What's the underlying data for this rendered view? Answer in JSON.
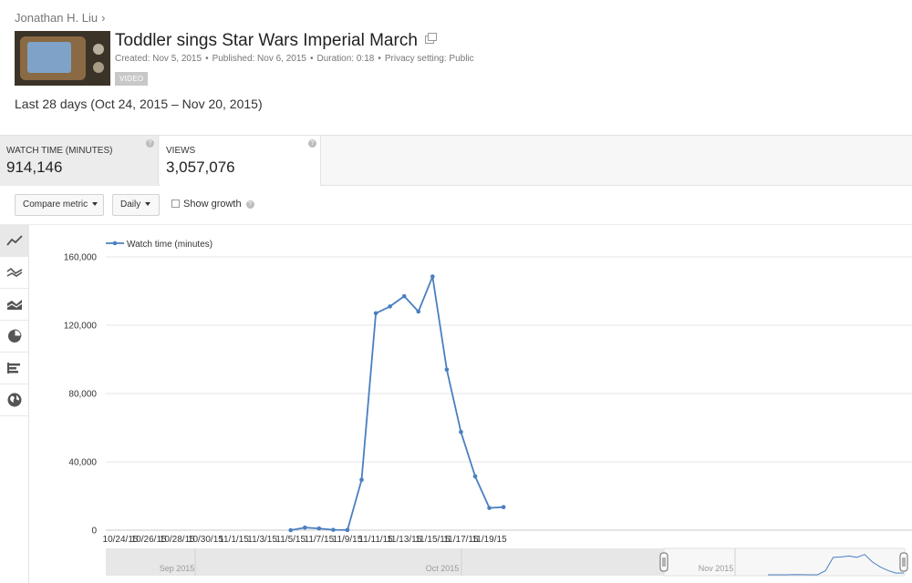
{
  "breadcrumb": {
    "channel": "Jonathan H. Liu",
    "separator": "›"
  },
  "video": {
    "title": "Toddler sings Star Wars Imperial March",
    "created": "Created: Nov 5, 2015",
    "published": "Published: Nov 6, 2015",
    "duration": "Duration: 0:18",
    "privacy": "Privacy setting: Public",
    "type_badge": "VIDEO",
    "thumbnail_icon": "video-thumbnail"
  },
  "date_range": "Last 28 days (Oct 24, 2015 – Nov 20, 2015)",
  "metrics": [
    {
      "label": "WATCH TIME (MINUTES)",
      "value": "914,146",
      "active": true
    },
    {
      "label": "VIEWS",
      "value": "3,057,076",
      "active": false
    }
  ],
  "controls": {
    "compare_metric": "Compare metric",
    "granularity": "Daily",
    "show_growth": "Show growth",
    "show_growth_checked": false
  },
  "toolbar": [
    {
      "name": "line-chart-icon",
      "active": true
    },
    {
      "name": "multi-line-chart-icon",
      "active": false
    },
    {
      "name": "stacked-area-chart-icon",
      "active": false
    },
    {
      "name": "pie-chart-icon",
      "active": false
    },
    {
      "name": "bar-chart-icon",
      "active": false
    },
    {
      "name": "globe-map-icon",
      "active": false
    }
  ],
  "colors": {
    "series": "#4a7fc1",
    "grid": "#e6e6e6",
    "axis_text": "#333333"
  },
  "chart_data": {
    "type": "line",
    "series": [
      {
        "name": "Watch time (minutes)",
        "x": [
          "11/5/15",
          "11/6/15",
          "11/7/15",
          "11/8/15",
          "11/9/15",
          "11/10/15",
          "11/11/15",
          "11/12/15",
          "11/13/15",
          "11/14/15",
          "11/15/15",
          "11/16/15",
          "11/17/15",
          "11/18/15",
          "11/19/15",
          "11/20/15"
        ],
        "values": [
          0,
          1500,
          1000,
          200,
          100,
          29500,
          127000,
          131000,
          137000,
          128000,
          148500,
          94000,
          57500,
          31500,
          13000,
          13500
        ]
      }
    ],
    "x_tick_labels": [
      "10/24/15",
      "10/26/15",
      "10/28/15",
      "10/30/15",
      "11/1/15",
      "11/3/15",
      "11/5/15",
      "11/7/15",
      "11/9/15",
      "11/11/15",
      "11/13/15",
      "11/15/15",
      "11/17/15",
      "11/19/15"
    ],
    "x_range": [
      "10/24/15",
      "11/20/15"
    ],
    "y_ticks": [
      0,
      40000,
      80000,
      120000,
      160000
    ],
    "y_tick_labels": [
      "0",
      "40,000",
      "80,000",
      "120,000",
      "160,000"
    ],
    "ylim": [
      0,
      160000
    ],
    "legend_position": "top-left",
    "grid": true,
    "navigator": {
      "labels": [
        "Sep 2015",
        "Oct 2015",
        "Nov 2015"
      ],
      "selected_range": [
        "10/24/15",
        "11/20/15"
      ]
    }
  }
}
